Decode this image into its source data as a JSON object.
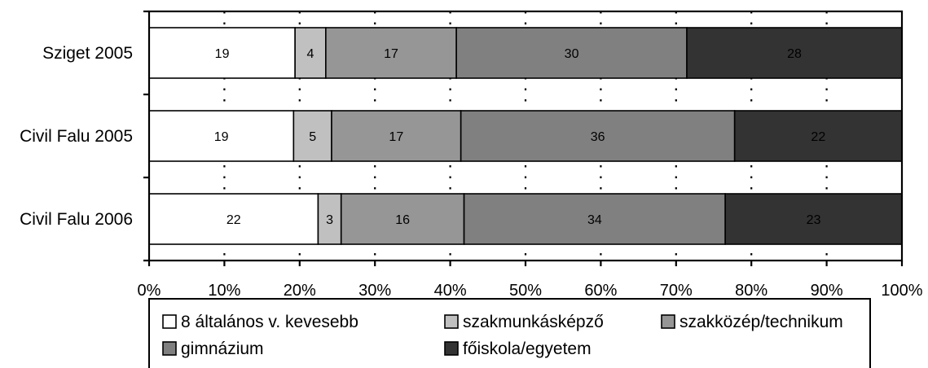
{
  "chart_data": {
    "type": "bar",
    "orientation": "horizontal",
    "stacked": "percent",
    "title": "",
    "xlabel": "",
    "ylabel": "",
    "xlim": [
      0,
      100
    ],
    "x_ticks": [
      "0%",
      "10%",
      "20%",
      "30%",
      "40%",
      "50%",
      "60%",
      "70%",
      "80%",
      "90%",
      "100%"
    ],
    "categories": [
      "Sziget 2005",
      "Civil Falu 2005",
      "Civil Falu 2006"
    ],
    "series": [
      {
        "name": "8 általános v. kevesebb",
        "values": [
          19,
          19,
          22
        ],
        "labels": [
          "19",
          "19",
          "22"
        ],
        "color": "#ffffff"
      },
      {
        "name": "szakmunkásképző",
        "values": [
          4,
          5,
          3
        ],
        "labels": [
          "4",
          "5",
          "3"
        ],
        "color": "#c0c0c0"
      },
      {
        "name": "szakközép/technikum",
        "values": [
          17,
          17,
          16
        ],
        "labels": [
          "17",
          "17",
          "16"
        ],
        "color": "#969696"
      },
      {
        "name": "gimnázium",
        "values": [
          30,
          36,
          34
        ],
        "labels": [
          "30",
          "36",
          "34"
        ],
        "color": "#808080"
      },
      {
        "name": "főiskola/egyetem",
        "values": [
          28,
          22,
          23
        ],
        "labels": [
          "28",
          "22",
          "23"
        ],
        "color": "#333333"
      }
    ],
    "grid": "vertical-dotted",
    "legend": "bottom"
  }
}
